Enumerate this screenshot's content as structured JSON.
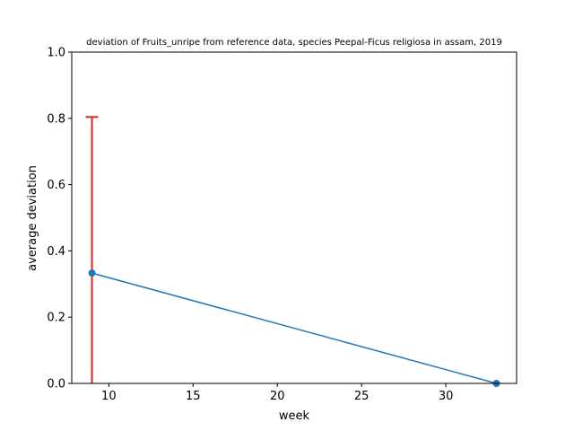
{
  "chart_data": {
    "type": "line",
    "title": "deviation of Fruits_unripe from reference data, species Peepal-Ficus religiosa in assam, 2019",
    "xlabel": "week",
    "ylabel": "average deviation",
    "xlim": [
      7.8,
      34.2
    ],
    "ylim": [
      0,
      1.0
    ],
    "xticks": [
      10,
      15,
      20,
      25,
      30
    ],
    "xtick_labels": [
      "10",
      "15",
      "20",
      "25",
      "30"
    ],
    "yticks": [
      0.0,
      0.2,
      0.4,
      0.6,
      0.8,
      1.0
    ],
    "ytick_labels": [
      "0.0",
      "0.2",
      "0.4",
      "0.6",
      "0.8",
      "1.0"
    ],
    "grid": false,
    "series": [
      {
        "x": [
          9,
          33
        ],
        "y": [
          0.333,
          0.0
        ],
        "error_upper": [
          0.804,
          null
        ],
        "color": "#1f77b4",
        "error_color": "#d62728",
        "marker": "circle"
      }
    ]
  }
}
